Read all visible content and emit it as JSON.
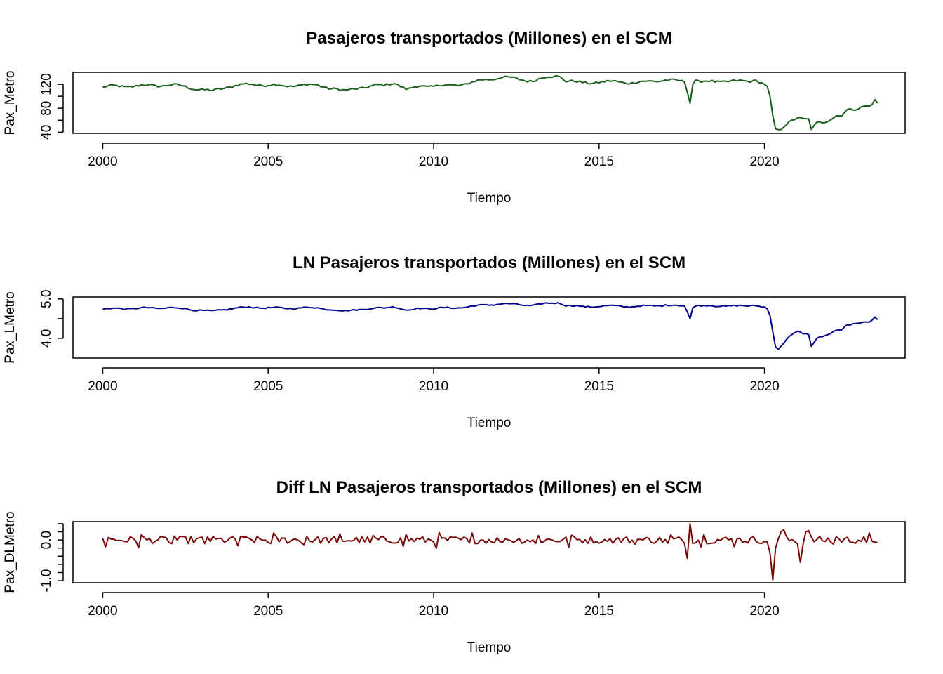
{
  "chart_data": [
    {
      "type": "line",
      "title": "Pasajeros transportados (Millones) en el SCM",
      "xlabel": "Tiempo",
      "ylabel": "Pax_Metro",
      "color": "#1a5e1a",
      "xlim": [
        1999.1,
        2024.25
      ],
      "ylim": [
        38,
        140
      ],
      "xticks": [
        "2000",
        "2005",
        "2010",
        "2015",
        "2020"
      ],
      "yticks": [
        "40",
        "80",
        "120"
      ],
      "knots": [
        [
          2000.0,
          115
        ],
        [
          2000.5,
          117
        ],
        [
          2001.0,
          117
        ],
        [
          2001.5,
          118
        ],
        [
          2002.0,
          119
        ],
        [
          2002.5,
          116
        ],
        [
          2003.0,
          111
        ],
        [
          2003.3,
          108
        ],
        [
          2003.7,
          115
        ],
        [
          2004.0,
          118
        ],
        [
          2004.5,
          120
        ],
        [
          2005.0,
          119
        ],
        [
          2005.5,
          117
        ],
        [
          2006.0,
          119
        ],
        [
          2006.5,
          118
        ],
        [
          2007.0,
          113
        ],
        [
          2007.3,
          108
        ],
        [
          2007.7,
          114
        ],
        [
          2008.0,
          116
        ],
        [
          2008.5,
          118
        ],
        [
          2008.8,
          124
        ],
        [
          2009.0,
          117
        ],
        [
          2009.2,
          110
        ],
        [
          2009.6,
          118
        ],
        [
          2010.0,
          117
        ],
        [
          2010.5,
          118
        ],
        [
          2011.0,
          121
        ],
        [
          2011.5,
          127
        ],
        [
          2012.0,
          132
        ],
        [
          2012.5,
          129
        ],
        [
          2013.0,
          126
        ],
        [
          2013.4,
          131
        ],
        [
          2013.8,
          135
        ],
        [
          2014.0,
          126
        ],
        [
          2014.5,
          122
        ],
        [
          2015.0,
          124
        ],
        [
          2015.5,
          124
        ],
        [
          2016.0,
          123
        ],
        [
          2016.5,
          124
        ],
        [
          2017.0,
          128
        ],
        [
          2017.5,
          124
        ],
        [
          2017.6,
          124
        ],
        [
          2017.75,
          90
        ],
        [
          2017.85,
          128
        ],
        [
          2018.0,
          126
        ],
        [
          2018.5,
          123
        ],
        [
          2019.0,
          127
        ],
        [
          2019.5,
          123
        ],
        [
          2019.75,
          127
        ],
        [
          2019.9,
          124
        ],
        [
          2020.05,
          121
        ],
        [
          2020.15,
          106
        ],
        [
          2020.25,
          65
        ],
        [
          2020.33,
          44
        ],
        [
          2020.42,
          41
        ],
        [
          2020.5,
          44
        ],
        [
          2020.7,
          56
        ],
        [
          2020.9,
          63
        ],
        [
          2021.0,
          66
        ],
        [
          2021.2,
          61
        ],
        [
          2021.35,
          60
        ],
        [
          2021.42,
          43
        ],
        [
          2021.6,
          56
        ],
        [
          2021.8,
          58
        ],
        [
          2022.0,
          63
        ],
        [
          2022.2,
          68
        ],
        [
          2022.3,
          65
        ],
        [
          2022.5,
          76
        ],
        [
          2022.8,
          80
        ],
        [
          2023.0,
          85
        ],
        [
          2023.2,
          83
        ],
        [
          2023.35,
          93
        ],
        [
          2023.45,
          84
        ],
        [
          2023.55,
          91
        ]
      ],
      "noise_amplitude": 3.5
    },
    {
      "type": "line",
      "title": "LN Pasajeros transportados (Millones) en el SCM",
      "xlabel": "Tiempo",
      "ylabel": "Pax_LMetro",
      "color": "#00008b",
      "xlim": [
        1999.1,
        2024.25
      ],
      "ylim": [
        3.5,
        5.05
      ],
      "xticks": [
        "2000",
        "2005",
        "2010",
        "2015",
        "2020"
      ],
      "yticks": [
        "4.0",
        "5.0"
      ],
      "knots": [
        [
          2000.0,
          4.74
        ],
        [
          2000.5,
          4.76
        ],
        [
          2001.0,
          4.76
        ],
        [
          2001.5,
          4.77
        ],
        [
          2002.0,
          4.78
        ],
        [
          2002.5,
          4.75
        ],
        [
          2003.0,
          4.71
        ],
        [
          2003.3,
          4.68
        ],
        [
          2003.7,
          4.74
        ],
        [
          2004.0,
          4.77
        ],
        [
          2004.5,
          4.79
        ],
        [
          2005.0,
          4.78
        ],
        [
          2005.5,
          4.76
        ],
        [
          2006.0,
          4.78
        ],
        [
          2006.5,
          4.77
        ],
        [
          2007.0,
          4.73
        ],
        [
          2007.3,
          4.68
        ],
        [
          2007.7,
          4.74
        ],
        [
          2008.0,
          4.75
        ],
        [
          2008.5,
          4.77
        ],
        [
          2008.8,
          4.82
        ],
        [
          2009.0,
          4.76
        ],
        [
          2009.2,
          4.7
        ],
        [
          2009.6,
          4.77
        ],
        [
          2010.0,
          4.76
        ],
        [
          2010.5,
          4.77
        ],
        [
          2011.0,
          4.8
        ],
        [
          2011.5,
          4.84
        ],
        [
          2012.0,
          4.88
        ],
        [
          2012.5,
          4.86
        ],
        [
          2013.0,
          4.84
        ],
        [
          2013.4,
          4.88
        ],
        [
          2013.8,
          4.91
        ],
        [
          2014.0,
          4.84
        ],
        [
          2014.5,
          4.8
        ],
        [
          2015.0,
          4.82
        ],
        [
          2015.5,
          4.82
        ],
        [
          2016.0,
          4.81
        ],
        [
          2016.5,
          4.82
        ],
        [
          2017.0,
          4.85
        ],
        [
          2017.5,
          4.82
        ],
        [
          2017.6,
          4.82
        ],
        [
          2017.75,
          4.5
        ],
        [
          2017.85,
          4.85
        ],
        [
          2018.0,
          4.84
        ],
        [
          2018.5,
          4.81
        ],
        [
          2019.0,
          4.84
        ],
        [
          2019.5,
          4.81
        ],
        [
          2019.75,
          4.84
        ],
        [
          2019.9,
          4.82
        ],
        [
          2020.05,
          4.8
        ],
        [
          2020.15,
          4.66
        ],
        [
          2020.25,
          4.17
        ],
        [
          2020.33,
          3.78
        ],
        [
          2020.42,
          3.71
        ],
        [
          2020.5,
          3.78
        ],
        [
          2020.7,
          4.03
        ],
        [
          2020.9,
          4.14
        ],
        [
          2021.0,
          4.19
        ],
        [
          2021.2,
          4.11
        ],
        [
          2021.35,
          4.09
        ],
        [
          2021.42,
          3.76
        ],
        [
          2021.6,
          4.03
        ],
        [
          2021.8,
          4.06
        ],
        [
          2022.0,
          4.14
        ],
        [
          2022.2,
          4.22
        ],
        [
          2022.3,
          4.17
        ],
        [
          2022.5,
          4.33
        ],
        [
          2022.8,
          4.38
        ],
        [
          2023.0,
          4.44
        ],
        [
          2023.2,
          4.42
        ],
        [
          2023.35,
          4.53
        ],
        [
          2023.45,
          4.43
        ],
        [
          2023.55,
          4.51
        ]
      ],
      "noise_amplitude": 0.03
    },
    {
      "type": "line",
      "title": "Diff LN Pasajeros transportados (Millones) en el SCM",
      "xlabel": "Tiempo",
      "ylabel": "Pax_DLMetro",
      "color": "#7a0a0a",
      "xlim": [
        1999.1,
        2024.25
      ],
      "ylim": [
        -1.05,
        0.45
      ],
      "xticks": [
        "2000",
        "2005",
        "2010",
        "2015",
        "2020"
      ],
      "yticks": [
        "-1.0",
        "0.0"
      ],
      "spikes": [
        [
          2017.67,
          -0.45
        ],
        [
          2017.75,
          0.4
        ],
        [
          2020.17,
          -0.32
        ],
        [
          2020.25,
          -0.98
        ],
        [
          2020.33,
          -0.2
        ],
        [
          2020.5,
          0.2
        ],
        [
          2020.58,
          0.25
        ],
        [
          2021.0,
          -0.1
        ],
        [
          2021.08,
          -0.55
        ],
        [
          2021.17,
          -0.1
        ],
        [
          2021.25,
          0.2
        ],
        [
          2021.33,
          0.23
        ]
      ],
      "noise_amplitude": 0.09
    }
  ]
}
